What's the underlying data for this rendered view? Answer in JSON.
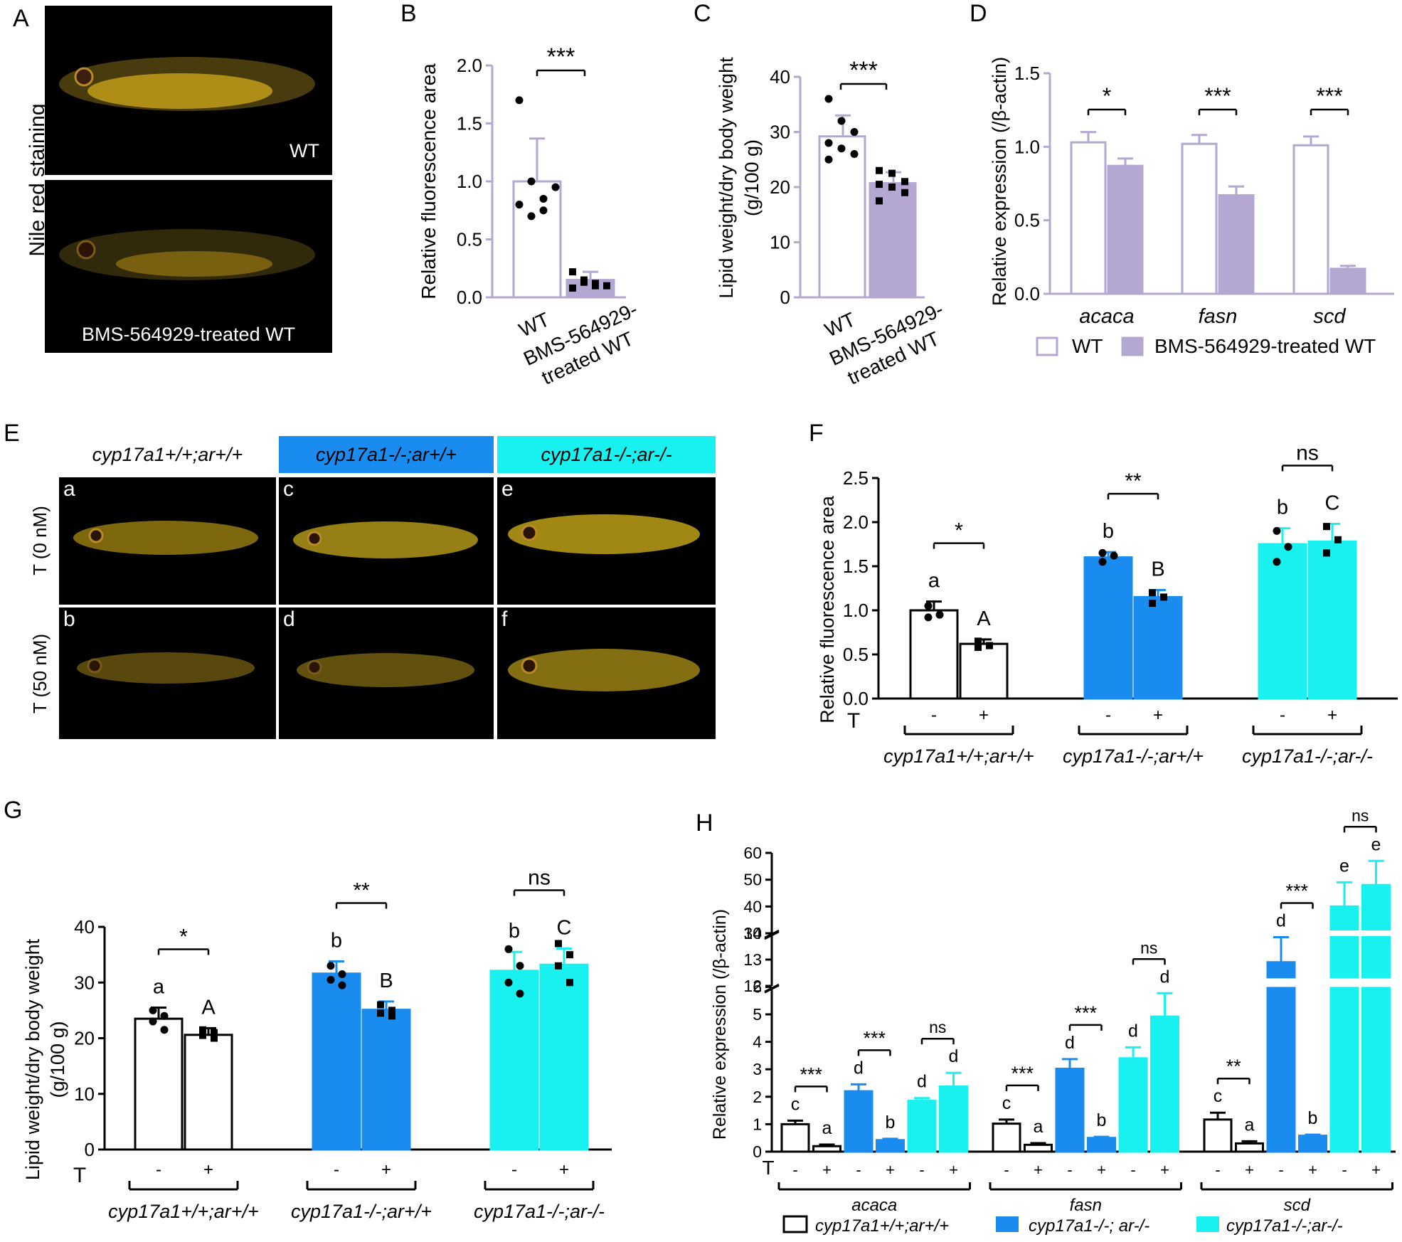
{
  "panels": {
    "A": {
      "letter": "A",
      "side_label": "Nile red staining",
      "top_label": "WT",
      "bottom_label": "BMS-564929-treated WT"
    },
    "B": {
      "letter": "B",
      "significance": "***"
    },
    "C": {
      "letter": "C",
      "significance": "***"
    },
    "D": {
      "letter": "D",
      "significance": [
        "*",
        "***",
        "***"
      ],
      "legend": [
        "WT",
        "BMS-564929-treated WT"
      ]
    },
    "E": {
      "letter": "E",
      "genotypes": [
        "cyp17a1+/+;ar+/+",
        "cyp17a1-/-;ar+/+",
        "cyp17a1-/-;ar-/-"
      ],
      "header_colors": [
        "#ffffff",
        "#1a8cf0",
        "#19f0f0"
      ],
      "row_labels": [
        "T (0 nM)",
        "T (50 nM)"
      ],
      "cell_letters": [
        "a",
        "c",
        "e",
        "b",
        "d",
        "f"
      ]
    },
    "F": {
      "letter": "F",
      "significance": [
        "*",
        "**",
        "ns"
      ],
      "group_letters": [
        [
          "a",
          "A"
        ],
        [
          "b",
          "B"
        ],
        [
          "b",
          "C"
        ]
      ],
      "treatment_label": "T",
      "treatment_ticks": [
        "-",
        "+"
      ],
      "groups": [
        "cyp17a1+/+;ar+/+",
        "cyp17a1-/-;ar+/+",
        "cyp17a1-/-;ar-/-"
      ]
    },
    "G": {
      "letter": "G",
      "significance": [
        "*",
        "**",
        "ns"
      ],
      "group_letters": [
        [
          "a",
          "A"
        ],
        [
          "b",
          "B"
        ],
        [
          "b",
          "C"
        ]
      ],
      "treatment_label": "T",
      "treatment_ticks": [
        "-",
        "+"
      ],
      "groups": [
        "cyp17a1+/+;ar+/+",
        "cyp17a1-/-;ar+/+",
        "cyp17a1-/-;ar-/-"
      ]
    },
    "H": {
      "letter": "H",
      "treatment_label": "T",
      "treatment_ticks": [
        "-",
        "+"
      ],
      "gene_groups": [
        "acaca",
        "fasn",
        "scd"
      ],
      "significance": [
        "***",
        "***",
        "ns",
        "***",
        "***",
        "ns",
        "**",
        "***",
        "ns"
      ],
      "bar_letters": [
        [
          "c",
          "a",
          "d",
          "b",
          "d",
          "d"
        ],
        [
          "c",
          "a",
          "d",
          "b",
          "d",
          "d"
        ],
        [
          "c",
          "a",
          "d",
          "b",
          "e",
          "e"
        ]
      ],
      "legend": [
        "cyp17a1+/+;ar+/+",
        "cyp17a1-/-; ar-/-",
        "cyp17a1-/-;ar-/-"
      ]
    }
  },
  "colors": {
    "lavender": "#b4a8d2",
    "blue": "#1a8cf0",
    "cyan": "#19f0f0",
    "white": "#ffffff",
    "black": "#000000"
  },
  "chart_data": [
    {
      "id": "B",
      "type": "bar",
      "categories": [
        "WT",
        "BMS-564929-treated WT"
      ],
      "values": [
        1.0,
        0.15
      ],
      "errors": [
        0.37,
        0.07
      ],
      "points": [
        [
          1.7,
          1.0,
          0.85,
          0.95,
          0.8,
          0.7,
          0.75
        ],
        [
          0.22,
          0.15,
          0.12,
          0.1,
          0.08,
          0.13,
          0.1
        ]
      ],
      "ylabel": "Relative fluorescence area",
      "ylim": [
        0,
        2.0
      ],
      "yticks": [
        "0.0",
        "0.5",
        "1.0",
        "1.5",
        "2.0"
      ]
    },
    {
      "id": "C",
      "type": "bar",
      "categories": [
        "WT",
        "BMS-564929-treated WT"
      ],
      "values": [
        29.2,
        20.7
      ],
      "errors": [
        3.8,
        2.0
      ],
      "points": [
        [
          36,
          32,
          30,
          28,
          27,
          26,
          25
        ],
        [
          23,
          22.5,
          21,
          20.5,
          20,
          19,
          17.5
        ]
      ],
      "ylabel": "Lipid weight/dry body weight",
      "ylabel2": "(g/100 g)",
      "ylim": [
        0,
        40
      ],
      "yticks": [
        "0",
        "10",
        "20",
        "30",
        "40"
      ]
    },
    {
      "id": "D",
      "type": "bar",
      "categories": [
        "acaca",
        "fasn",
        "scd"
      ],
      "series": [
        {
          "name": "WT",
          "values": [
            1.03,
            1.02,
            1.01
          ],
          "errors": [
            0.07,
            0.06,
            0.06
          ]
        },
        {
          "name": "BMS-564929-treated WT",
          "values": [
            0.87,
            0.67,
            0.17
          ],
          "errors": [
            0.05,
            0.06,
            0.02
          ]
        }
      ],
      "ylabel": "Relative expression (/β-actin)",
      "ylim": [
        0,
        1.5
      ],
      "yticks": [
        "0.0",
        "0.5",
        "1.0",
        "1.5"
      ]
    },
    {
      "id": "F",
      "type": "bar",
      "categories": [
        "cyp17a1+/+;ar+/+",
        "cyp17a1-/-;ar+/+",
        "cyp17a1-/-;ar-/-"
      ],
      "series": [
        {
          "name": "-",
          "values": [
            1.0,
            1.6,
            1.75
          ],
          "errors": [
            0.1,
            0.06,
            0.18
          ]
        },
        {
          "name": "+",
          "values": [
            0.62,
            1.15,
            1.78
          ],
          "errors": [
            0.05,
            0.08,
            0.2
          ]
        }
      ],
      "points": [
        [
          [
            1.05,
            0.95,
            0.92
          ],
          [
            0.65,
            0.6,
            0.58
          ]
        ],
        [
          [
            1.65,
            1.62,
            1.55
          ],
          [
            1.2,
            1.15,
            1.08
          ]
        ],
        [
          [
            1.9,
            1.72,
            1.55
          ],
          [
            1.95,
            1.8,
            1.65
          ]
        ]
      ],
      "ylabel": "Relative fluorescence area",
      "ylim": [
        0,
        2.5
      ],
      "yticks": [
        "0.0",
        "0.5",
        "1.0",
        "1.5",
        "2.0",
        "2.5"
      ]
    },
    {
      "id": "G",
      "type": "bar",
      "categories": [
        "cyp17a1+/+;ar+/+",
        "cyp17a1-/-;ar+/+",
        "cyp17a1-/-;ar-/-"
      ],
      "series": [
        {
          "name": "-",
          "values": [
            23.5,
            31.6,
            32.1
          ],
          "errors": [
            2.0,
            2.2,
            3.4
          ]
        },
        {
          "name": "+",
          "values": [
            20.6,
            25.1,
            33.2
          ],
          "errors": [
            1.2,
            1.5,
            2.9
          ]
        }
      ],
      "points": [
        [
          [
            25,
            24,
            23,
            21.5
          ],
          [
            21.5,
            21,
            20.5,
            20
          ]
        ],
        [
          [
            33,
            31.5,
            30.5,
            29.5
          ],
          [
            26,
            25,
            24.5,
            24
          ]
        ],
        [
          [
            36,
            33,
            30,
            28
          ],
          [
            37,
            35,
            33,
            30
          ]
        ]
      ],
      "ylabel": "Lipid weight/dry body weight",
      "ylabel2": "(g/100 g)",
      "ylim": [
        0,
        40
      ],
      "yticks": [
        "0",
        "10",
        "20",
        "30",
        "40"
      ]
    },
    {
      "id": "H",
      "type": "bar",
      "categories": [
        "acaca",
        "fasn",
        "scd"
      ],
      "series": [
        {
          "name": "cyp17a1+/+;ar+/+ -",
          "values": [
            1.0,
            1.02,
            1.17
          ],
          "errors": [
            0.13,
            0.15,
            0.25
          ]
        },
        {
          "name": "cyp17a1+/+;ar+/+ +",
          "values": [
            0.2,
            0.25,
            0.3
          ],
          "errors": [
            0.06,
            0.06,
            0.08
          ]
        },
        {
          "name": "cyp17a1-/-; ar-/- -",
          "values": [
            2.2,
            3.02,
            12.9
          ],
          "errors": [
            0.25,
            0.35,
            0.95
          ]
        },
        {
          "name": "cyp17a1-/-; ar-/- +",
          "values": [
            0.42,
            0.5,
            0.58
          ],
          "errors": [
            0.05,
            0.04,
            0.04
          ]
        },
        {
          "name": "cyp17a1-/-;ar-/- -",
          "values": [
            1.85,
            3.4,
            40
          ],
          "errors": [
            0.1,
            0.4,
            9
          ]
        },
        {
          "name": "cyp17a1-/-;ar-/- +",
          "values": [
            2.37,
            4.92,
            48
          ],
          "errors": [
            0.5,
            0.85,
            9
          ]
        }
      ],
      "ylabel": "Relative expression (/β-actin)",
      "ylim": [
        0,
        60
      ],
      "yticks_low": [
        "0",
        "1",
        "2",
        "3",
        "4",
        "5",
        "6"
      ],
      "yticks_mid": [
        "12",
        "13",
        "14"
      ],
      "yticks_high": [
        "30",
        "40",
        "50",
        "60"
      ]
    }
  ]
}
